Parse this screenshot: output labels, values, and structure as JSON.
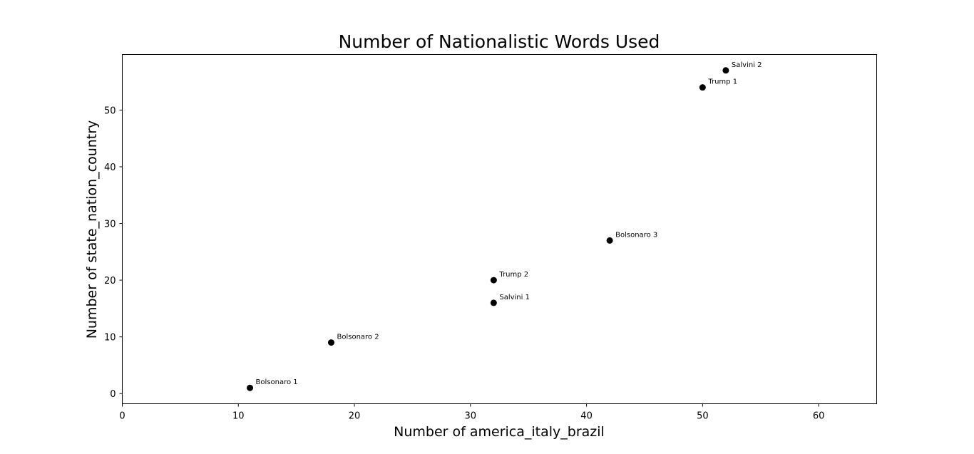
{
  "chart_data": {
    "type": "scatter",
    "title": "Number of Nationalistic Words Used",
    "xlabel": "Number of america_italy_brazil",
    "ylabel": "Number of state_nation_country",
    "xlim": [
      0,
      65
    ],
    "ylim": [
      -1.8,
      59.8
    ],
    "xticks": [
      0,
      10,
      20,
      30,
      40,
      50,
      60
    ],
    "yticks": [
      0,
      10,
      20,
      30,
      40,
      50
    ],
    "grid": false,
    "marker_color": "#000000",
    "points": [
      {
        "label": "Bolsonaro 1",
        "x": 11,
        "y": 1
      },
      {
        "label": "Bolsonaro 2",
        "x": 18,
        "y": 9
      },
      {
        "label": "Salvini 1",
        "x": 32,
        "y": 16
      },
      {
        "label": "Trump 2",
        "x": 32,
        "y": 20
      },
      {
        "label": "Bolsonaro 3",
        "x": 42,
        "y": 27
      },
      {
        "label": "Trump 1",
        "x": 50,
        "y": 54
      },
      {
        "label": "Salvini 2",
        "x": 52,
        "y": 57
      }
    ]
  }
}
